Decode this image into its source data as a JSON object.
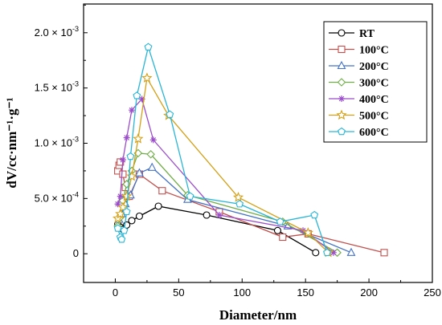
{
  "chart_data": {
    "type": "line",
    "xlabel": "Diameter/nm",
    "ylabel": "dV/cc·nm⁻¹·g⁻¹",
    "xlim": [
      -25,
      250
    ],
    "ylim": [
      -0.00026,
      0.00226
    ],
    "x_ticks": [
      0,
      50,
      100,
      150,
      200,
      250
    ],
    "x_tick_labels": [
      "0",
      "50",
      "100",
      "150",
      "200",
      "250"
    ],
    "y_ticks": [
      0,
      0.0005,
      0.001,
      0.0015,
      0.002
    ],
    "y_tick_labels": [
      {
        "mant": "0",
        "exp": ""
      },
      {
        "mant": "5.0 × 10",
        "exp": "-4"
      },
      {
        "mant": "1.0 × 10",
        "exp": "-3"
      },
      {
        "mant": "1.5 × 10",
        "exp": "-3"
      },
      {
        "mant": "2.0 × 10",
        "exp": "-3"
      }
    ],
    "grid": false,
    "legend_position": "top-right",
    "series": [
      {
        "name": "RT",
        "color": "#000000",
        "marker": "circle",
        "points": [
          [
            2,
            0.00027
          ],
          [
            4,
            0.00024
          ],
          [
            6,
            0.00022
          ],
          [
            9,
            0.00026
          ],
          [
            13,
            0.0003
          ],
          [
            19,
            0.00034
          ],
          [
            34,
            0.00043
          ],
          [
            72,
            0.00035
          ],
          [
            128,
            0.00021
          ],
          [
            158,
            1e-05
          ]
        ]
      },
      {
        "name": "100°C",
        "color": "#c0504d",
        "marker": "square",
        "points": [
          [
            2,
            0.00075
          ],
          [
            3,
            0.0008
          ],
          [
            4,
            0.00083
          ],
          [
            6,
            0.00072
          ],
          [
            8,
            0.0006
          ],
          [
            11,
            0.00052
          ],
          [
            19,
            0.00072
          ],
          [
            37,
            0.00057
          ],
          [
            82,
            0.00038
          ],
          [
            132,
            0.00015
          ],
          [
            152,
            0.00018
          ],
          [
            212,
            1e-05
          ]
        ]
      },
      {
        "name": "200°C",
        "color": "#4472c4",
        "marker": "triangle",
        "points": [
          [
            3,
            0.00031
          ],
          [
            5,
            0.00036
          ],
          [
            8,
            0.00045
          ],
          [
            12,
            0.00053
          ],
          [
            19,
            0.00073
          ],
          [
            29,
            0.00078
          ],
          [
            57,
            0.00049
          ],
          [
            136,
            0.00025
          ],
          [
            186,
            1e-05
          ]
        ]
      },
      {
        "name": "300°C",
        "color": "#70ad47",
        "marker": "diamond",
        "points": [
          [
            2,
            0.00025
          ],
          [
            4,
            0.00033
          ],
          [
            6,
            0.00048
          ],
          [
            9,
            0.00063
          ],
          [
            13,
            0.00075
          ],
          [
            18,
            0.00091
          ],
          [
            28,
            0.0009
          ],
          [
            57,
            0.00053
          ],
          [
            132,
            0.00029
          ],
          [
            175,
            1e-05
          ]
        ]
      },
      {
        "name": "400°C",
        "color": "#9b4dca",
        "marker": "star",
        "points": [
          [
            2,
            0.00045
          ],
          [
            4,
            0.00052
          ],
          [
            6,
            0.00085
          ],
          [
            9,
            0.00105
          ],
          [
            13,
            0.0013
          ],
          [
            21,
            0.0014
          ],
          [
            30,
            0.00103
          ],
          [
            82,
            0.00035
          ],
          [
            148,
            0.00021
          ],
          [
            172,
            1e-05
          ]
        ]
      },
      {
        "name": "500°C",
        "color": "#d4a017",
        "marker": "star5",
        "points": [
          [
            2,
            0.00032
          ],
          [
            4,
            0.00036
          ],
          [
            6,
            0.00042
          ],
          [
            9,
            0.00052
          ],
          [
            13,
            0.0007
          ],
          [
            18,
            0.00104
          ],
          [
            25,
            0.00159
          ],
          [
            42,
            0.00125
          ],
          [
            97,
            0.00051
          ],
          [
            152,
            0.00019
          ],
          [
            168,
            1e-05
          ]
        ]
      },
      {
        "name": "600°C",
        "color": "#29b6d6",
        "marker": "pentagon",
        "points": [
          [
            2,
            0.00023
          ],
          [
            4,
            0.00015
          ],
          [
            5,
            0.00013
          ],
          [
            7,
            0.00021
          ],
          [
            9,
            0.00038
          ],
          [
            12,
            0.00088
          ],
          [
            17,
            0.00143
          ],
          [
            26,
            0.00187
          ],
          [
            43,
            0.00126
          ],
          [
            59,
            0.00052
          ],
          [
            98,
            0.00045
          ],
          [
            130,
            0.00029
          ],
          [
            157,
            0.00035
          ],
          [
            167,
            1e-05
          ]
        ]
      }
    ]
  }
}
